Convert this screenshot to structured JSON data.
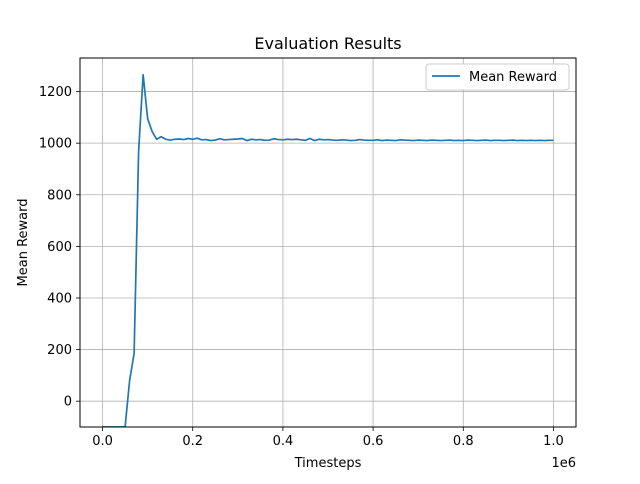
{
  "chart_data": {
    "type": "line",
    "title": "Evaluation Results",
    "xlabel": "Timesteps",
    "ylabel": "Mean Reward",
    "x_offset_label": "1e6",
    "xlim": [
      -0.05,
      1.05
    ],
    "ylim": [
      -100,
      1330
    ],
    "x_ticks": [
      0.0,
      0.2,
      0.4,
      0.6,
      0.8,
      1.0
    ],
    "x_tick_labels": [
      "0.0",
      "0.2",
      "0.4",
      "0.6",
      "0.8",
      "1.0"
    ],
    "y_ticks": [
      0,
      200,
      400,
      600,
      800,
      1000,
      1200
    ],
    "y_tick_labels": [
      "0",
      "200",
      "400",
      "600",
      "800",
      "1000",
      "1200"
    ],
    "grid": true,
    "legend": {
      "position": "upper-right",
      "entries": [
        "Mean Reward"
      ]
    },
    "series": [
      {
        "name": "Mean Reward",
        "color": "#1f77b4",
        "x": [
          0.0,
          0.01,
          0.02,
          0.03,
          0.04,
          0.05,
          0.06,
          0.07,
          0.08,
          0.09,
          0.1,
          0.11,
          0.12,
          0.13,
          0.14,
          0.15,
          0.16,
          0.17,
          0.18,
          0.19,
          0.2,
          0.21,
          0.22,
          0.23,
          0.24,
          0.25,
          0.26,
          0.27,
          0.28,
          0.29,
          0.3,
          0.31,
          0.32,
          0.33,
          0.34,
          0.35,
          0.36,
          0.37,
          0.38,
          0.39,
          0.4,
          0.41,
          0.42,
          0.43,
          0.44,
          0.45,
          0.46,
          0.47,
          0.48,
          0.49,
          0.5,
          0.51,
          0.52,
          0.53,
          0.54,
          0.55,
          0.56,
          0.57,
          0.58,
          0.59,
          0.6,
          0.61,
          0.62,
          0.63,
          0.64,
          0.65,
          0.66,
          0.67,
          0.68,
          0.69,
          0.7,
          0.71,
          0.72,
          0.73,
          0.74,
          0.75,
          0.76,
          0.77,
          0.78,
          0.79,
          0.8,
          0.81,
          0.82,
          0.83,
          0.84,
          0.85,
          0.86,
          0.87,
          0.88,
          0.89,
          0.9,
          0.91,
          0.92,
          0.93,
          0.94,
          0.95,
          0.96,
          0.97,
          0.98,
          0.99,
          1.0
        ],
        "y": [
          -100,
          -100,
          -100,
          -100,
          -100,
          -100,
          80,
          185,
          970,
          1265,
          1095,
          1045,
          1015,
          1025,
          1015,
          1012,
          1015,
          1016,
          1014,
          1018,
          1015,
          1019,
          1013,
          1014,
          1010,
          1012,
          1017,
          1013,
          1014,
          1015,
          1016,
          1018,
          1010,
          1015,
          1013,
          1014,
          1011,
          1012,
          1017,
          1014,
          1013,
          1015,
          1014,
          1015,
          1013,
          1011,
          1018,
          1010,
          1015,
          1013,
          1014,
          1012,
          1011,
          1013,
          1012,
          1010,
          1011,
          1014,
          1012,
          1011,
          1011,
          1013,
          1010,
          1012,
          1011,
          1010,
          1013,
          1012,
          1011,
          1010,
          1012,
          1011,
          1010,
          1012,
          1011,
          1010,
          1011,
          1012,
          1010,
          1011,
          1010,
          1012,
          1011,
          1010,
          1011,
          1012,
          1010,
          1011,
          1011,
          1010,
          1011,
          1012,
          1010,
          1011,
          1010,
          1011,
          1010,
          1011,
          1010,
          1011,
          1011
        ]
      }
    ]
  }
}
